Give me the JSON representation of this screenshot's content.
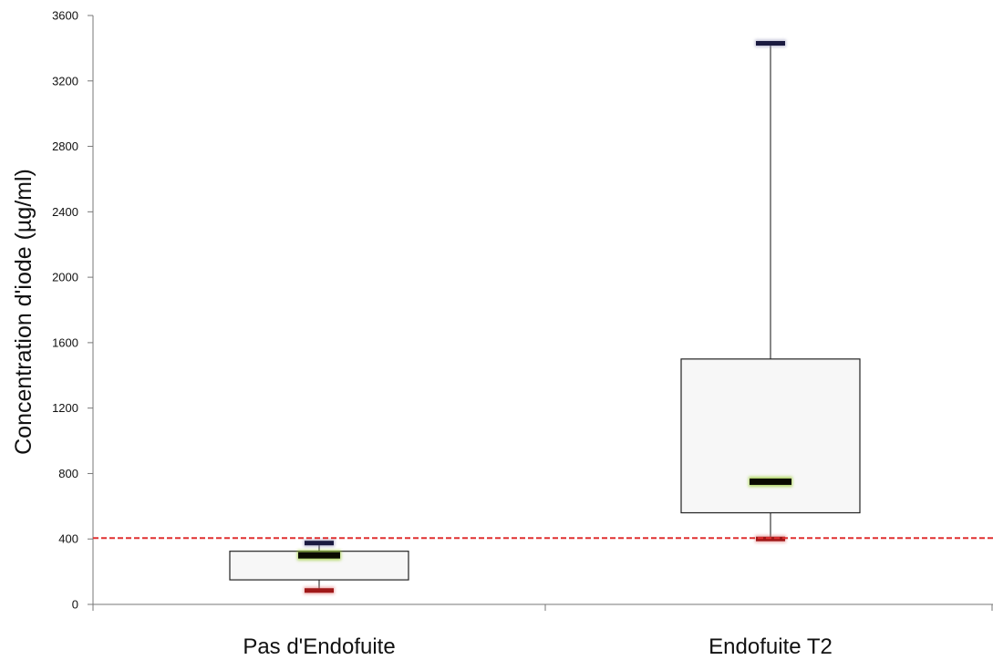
{
  "chart_data": {
    "type": "box",
    "title": "",
    "xlabel": "",
    "ylabel": "Concentration d'iode (µg/ml)",
    "ylim": [
      0,
      3600
    ],
    "yticks": [
      0,
      400,
      800,
      1200,
      1600,
      2000,
      2400,
      2800,
      3200,
      3600
    ],
    "grid": false,
    "categories": [
      "Pas d'Endofuite",
      "Endofuite T2"
    ],
    "boxes": [
      {
        "category": "Pas d'Endofuite",
        "min": 85,
        "q1": 150,
        "median": 300,
        "q3": 325,
        "max": 375
      },
      {
        "category": "Endofuite T2",
        "min": 400,
        "q1": 560,
        "median": 750,
        "q3": 1500,
        "max": 3430
      }
    ],
    "reference_line": {
      "value": 400,
      "style": "dashed",
      "color": "#e03030"
    },
    "colors": {
      "box_fill": "#f7f7f7",
      "median_marker": "#0a0a00",
      "median_glow": "#9acd32",
      "min_marker": "#a01818",
      "max_marker": "#1a1a40",
      "axis": "#777777"
    }
  }
}
